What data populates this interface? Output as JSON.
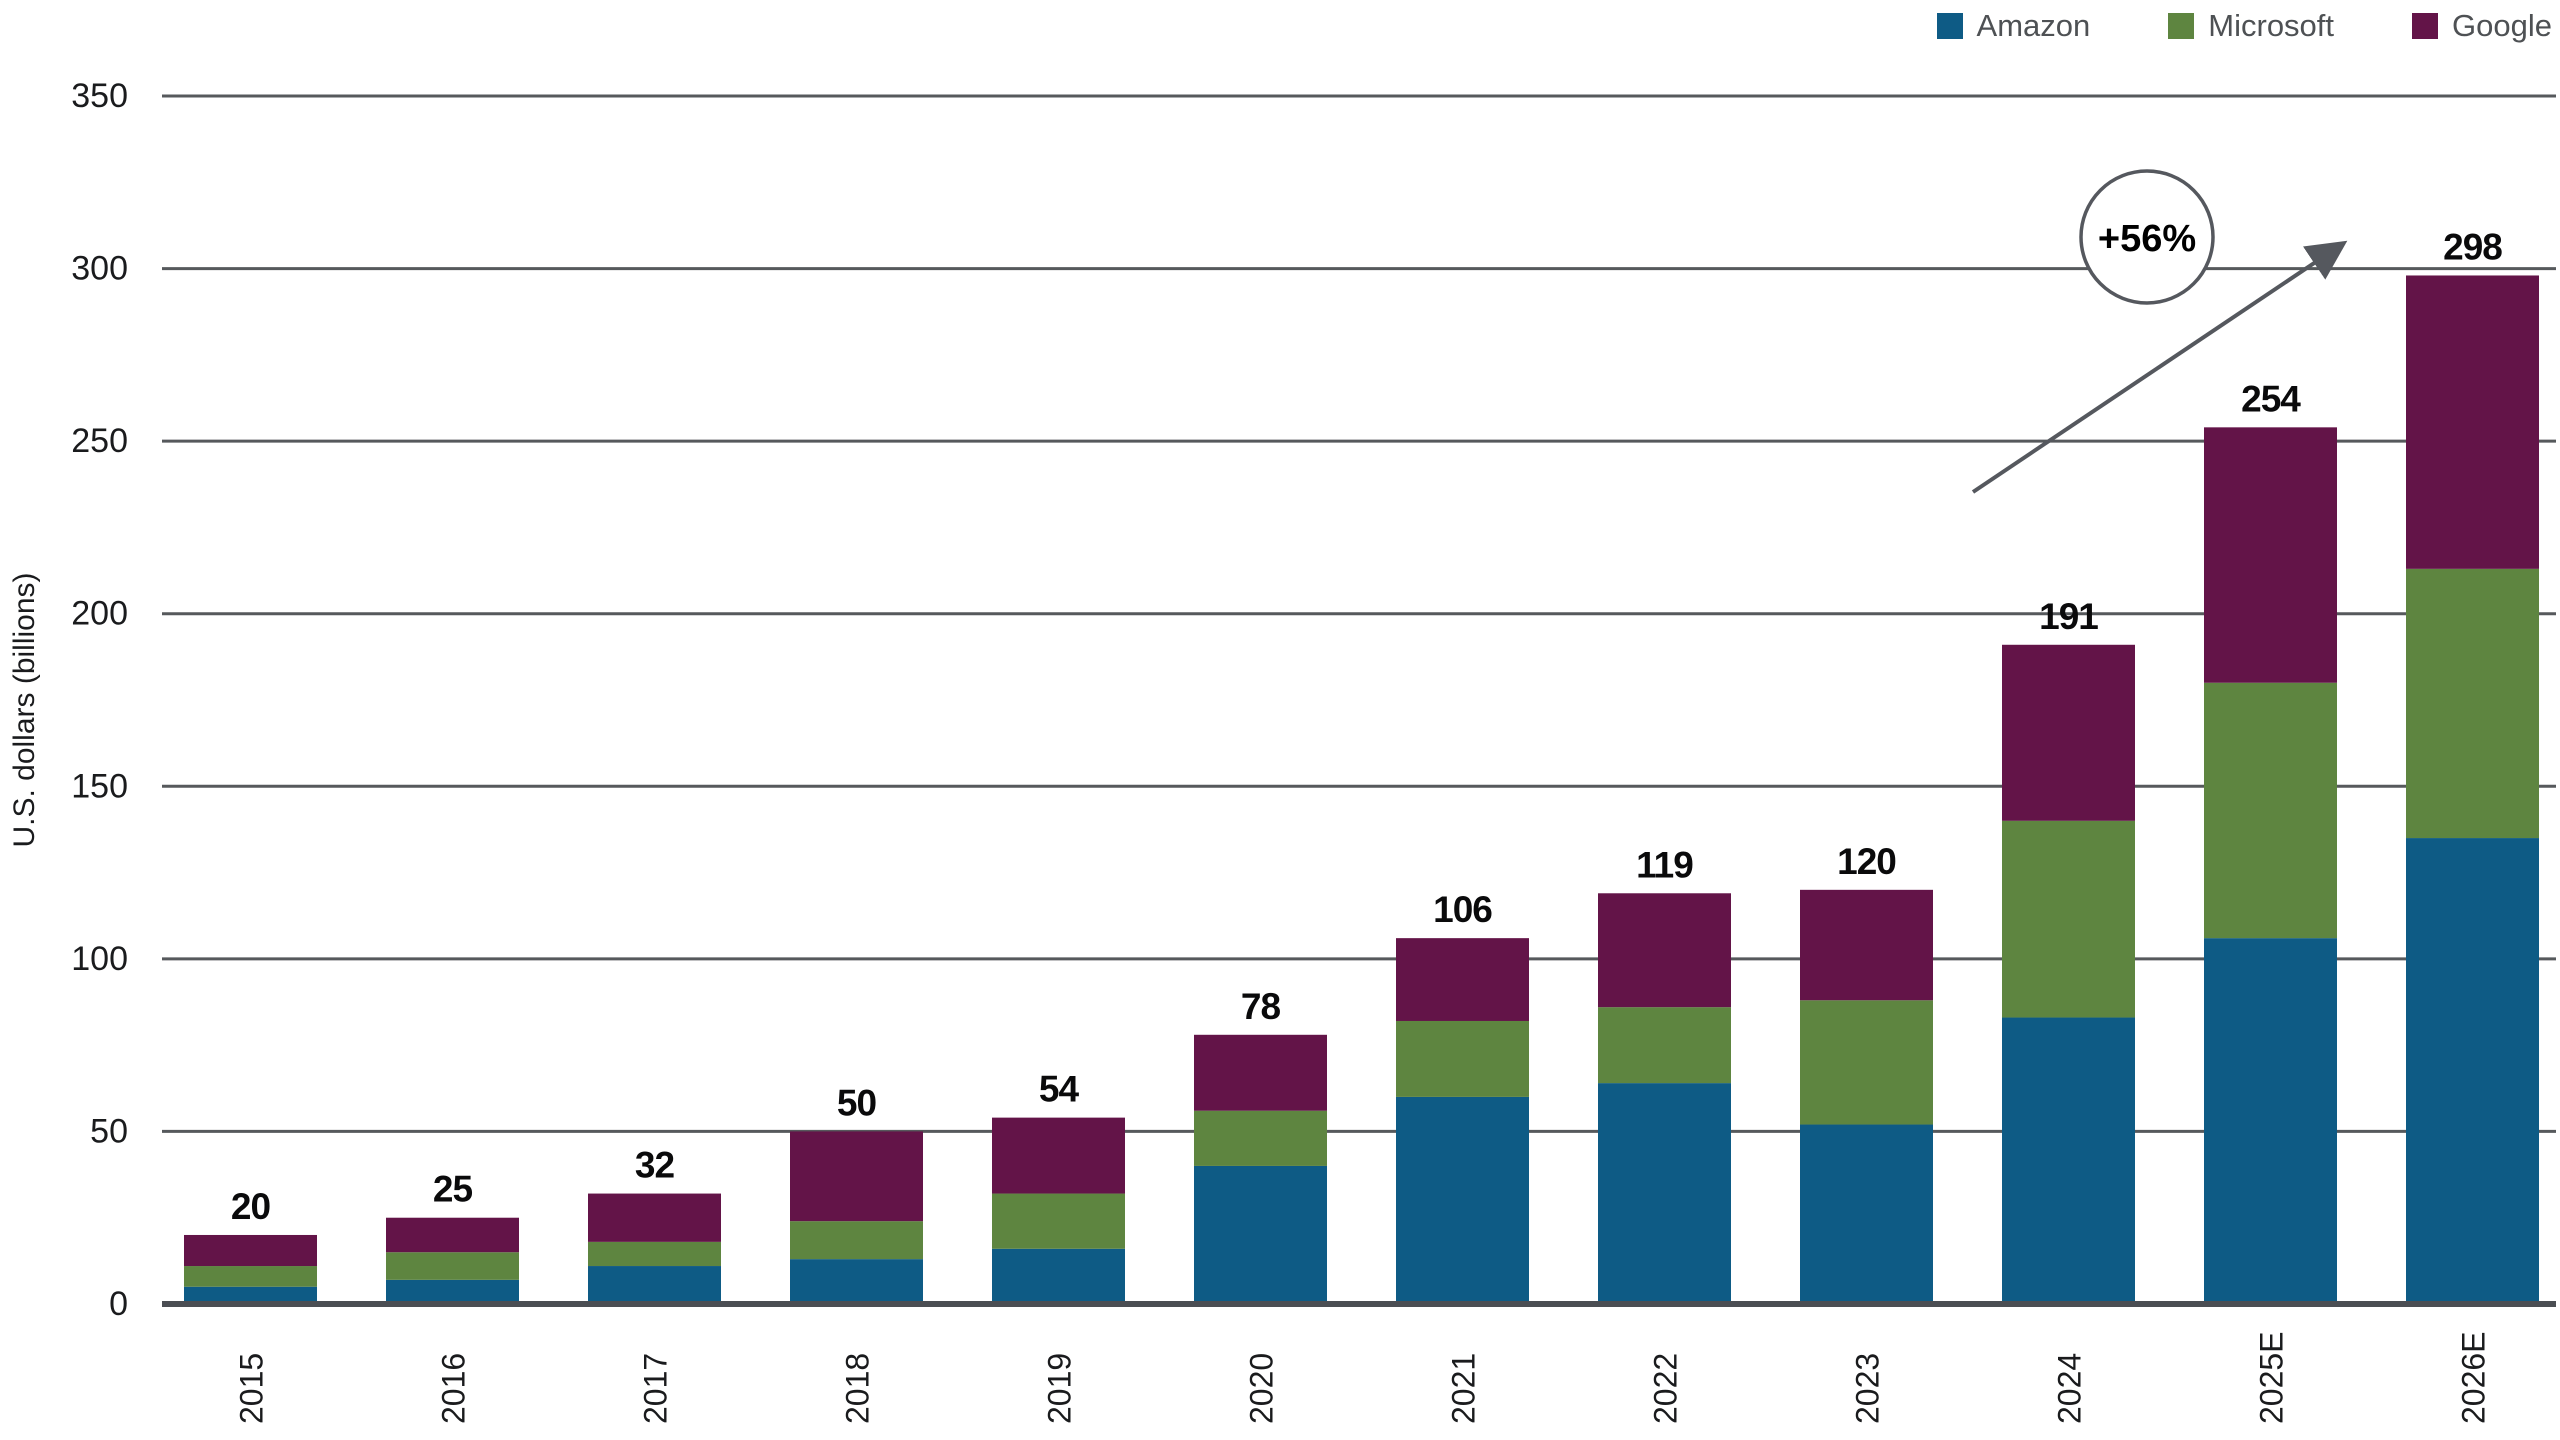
{
  "colors": {
    "amazon": "#0e5b85",
    "microsoft": "#5e8540",
    "google": "#631448",
    "gridline": "#56595c",
    "baseline": "#4b4e53",
    "axis_text": "#1a1b1d",
    "legend_text": "#4e5154",
    "total_text": "#0a0a0b",
    "annotation_stroke": "#55585e",
    "background": "#ffffff"
  },
  "chart_data": {
    "type": "bar",
    "stacked": true,
    "title": "",
    "ylabel": "U.S. dollars (billions)",
    "ylim": [
      0,
      350
    ],
    "yticks": [
      0,
      50,
      100,
      150,
      200,
      250,
      300,
      350
    ],
    "grid": true,
    "legend_position": "top-right",
    "categories": [
      "2015",
      "2016",
      "2017",
      "2018",
      "2019",
      "2020",
      "2021",
      "2022",
      "2023",
      "2024",
      "2025E",
      "2026E"
    ],
    "series": [
      {
        "name": "Amazon",
        "color": "#0e5b85",
        "values": [
          5,
          7,
          11,
          13,
          16,
          40,
          60,
          64,
          52,
          83,
          106,
          135
        ]
      },
      {
        "name": "Microsoft",
        "color": "#5e8540",
        "values": [
          6,
          8,
          7,
          11,
          16,
          16,
          22,
          22,
          36,
          57,
          74,
          78
        ]
      },
      {
        "name": "Google",
        "color": "#631448",
        "values": [
          9,
          10,
          14,
          26,
          22,
          22,
          24,
          33,
          32,
          51,
          74,
          85
        ]
      }
    ],
    "totals": [
      20,
      25,
      32,
      50,
      54,
      78,
      106,
      119,
      120,
      191,
      254,
      298
    ],
    "annotation": {
      "label": "+56%"
    }
  }
}
